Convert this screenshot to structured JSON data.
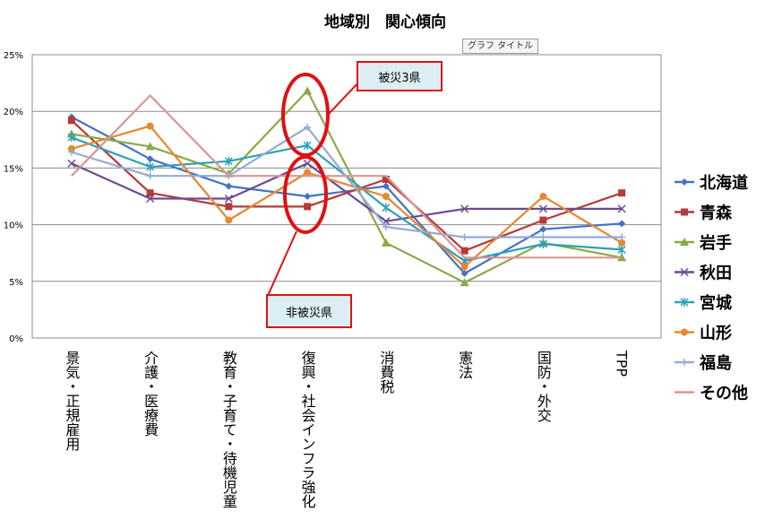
{
  "tooltip_text": "グラフ タイトル",
  "callouts": {
    "affected": "被災3県",
    "non_affected": "非被災県"
  },
  "chart_data": {
    "type": "line",
    "title": "地域別　関心傾向",
    "xlabel": "",
    "ylabel": "",
    "categories": [
      "景気・正規雇用",
      "介護・医療費",
      "教育・子育て・待機児童",
      "復興・社会インフラ強化",
      "消費税",
      "憲法",
      "国防・外交",
      "TPP"
    ],
    "y_ticks": [
      "0%",
      "5%",
      "10%",
      "15%",
      "20%",
      "25%"
    ],
    "ylim": [
      0,
      25
    ],
    "grid": true,
    "legend_position": "right",
    "series": [
      {
        "name": "北海道",
        "color": "#4472c4",
        "marker": "diamond",
        "values": [
          19.5,
          15.8,
          13.4,
          12.5,
          13.4,
          5.7,
          9.6,
          10.1
        ]
      },
      {
        "name": "青森",
        "color": "#b53a38",
        "marker": "square",
        "values": [
          19.2,
          12.8,
          11.6,
          11.6,
          14.0,
          7.7,
          10.4,
          12.8
        ]
      },
      {
        "name": "岩手",
        "color": "#8aaa46",
        "marker": "triangle",
        "values": [
          18.0,
          16.9,
          14.5,
          21.8,
          8.4,
          4.9,
          8.4,
          7.1
        ]
      },
      {
        "name": "秋田",
        "color": "#6b4a94",
        "marker": "x",
        "values": [
          15.4,
          12.3,
          12.3,
          15.4,
          10.3,
          11.4,
          11.4,
          11.4
        ]
      },
      {
        "name": "宮城",
        "color": "#2ea0b9",
        "marker": "star",
        "values": [
          17.7,
          15.1,
          15.6,
          17.0,
          11.5,
          6.8,
          8.3,
          7.8
        ]
      },
      {
        "name": "山形",
        "color": "#e8872f",
        "marker": "circle",
        "values": [
          16.7,
          18.7,
          10.4,
          14.6,
          12.5,
          6.3,
          12.5,
          8.4
        ]
      },
      {
        "name": "福島",
        "color": "#94abd6",
        "marker": "plus",
        "values": [
          16.4,
          14.3,
          14.3,
          18.6,
          9.8,
          8.9,
          8.9,
          8.9
        ]
      },
      {
        "name": "その他",
        "color": "#d99594",
        "marker": "none",
        "values": [
          14.3,
          21.4,
          14.3,
          14.3,
          14.3,
          7.1,
          7.1,
          7.1
        ]
      }
    ]
  }
}
